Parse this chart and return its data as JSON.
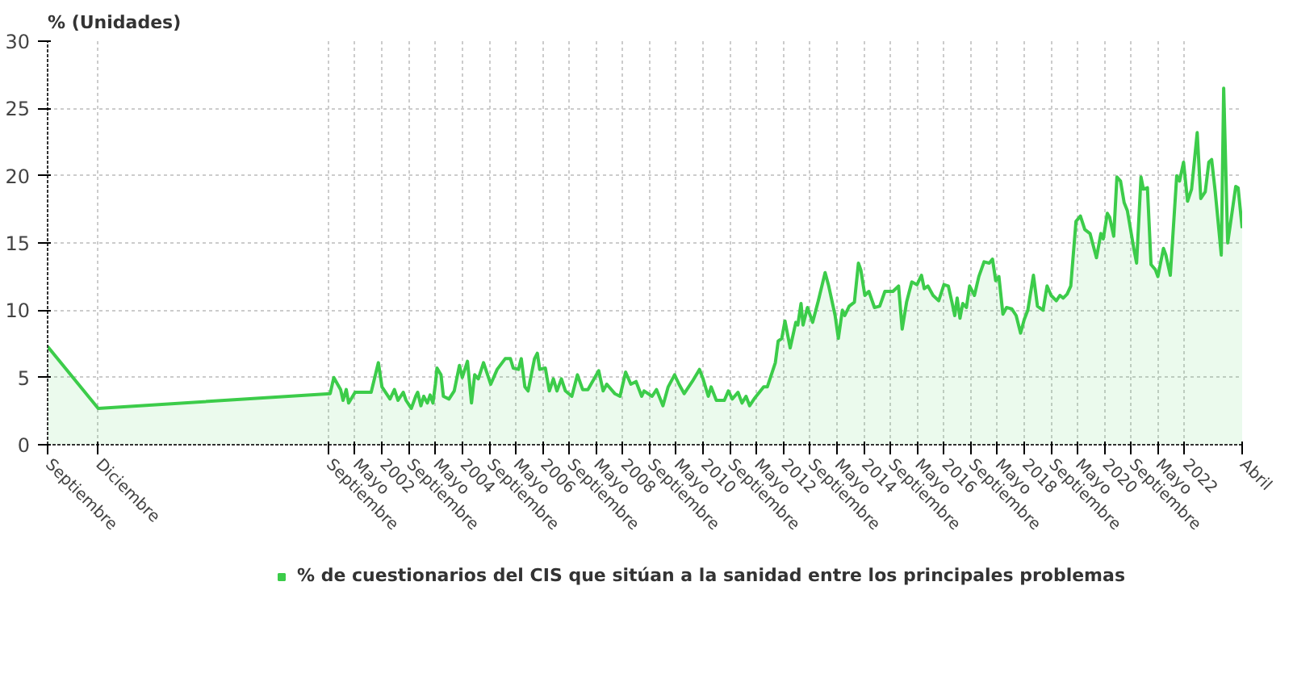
{
  "chart_data": {
    "type": "area",
    "ylabel": "% (Unidades)",
    "x": [
      1993.67,
      1994.93,
      2000.71,
      2000.8,
      2000.97,
      2001.03,
      2001.11,
      2001.17,
      2001.33,
      2001.53,
      2001.73,
      2001.91,
      2002.0,
      2002.2,
      2002.31,
      2002.4,
      2002.53,
      2002.6,
      2002.73,
      2002.84,
      2002.89,
      2002.97,
      2003.04,
      2003.13,
      2003.2,
      2003.27,
      2003.33,
      2003.37,
      2003.47,
      2003.53,
      2003.67,
      2003.8,
      2003.93,
      2004.0,
      2004.13,
      2004.23,
      2004.31,
      2004.4,
      2004.53,
      2004.71,
      2004.87,
      2005.07,
      2005.2,
      2005.27,
      2005.4,
      2005.47,
      2005.56,
      2005.64,
      2005.8,
      2005.87,
      2005.93,
      2006.07,
      2006.17,
      2006.27,
      2006.36,
      2006.47,
      2006.57,
      2006.73,
      2006.87,
      2007.0,
      2007.13,
      2007.4,
      2007.51,
      2007.6,
      2007.8,
      2007.93,
      2008.07,
      2008.2,
      2008.33,
      2008.47,
      2008.53,
      2008.73,
      2008.84,
      2009.0,
      2009.13,
      2009.29,
      2009.4,
      2009.53,
      2009.73,
      2009.91,
      2010.0,
      2010.13,
      2010.2,
      2010.33,
      2010.53,
      2010.63,
      2010.73,
      2010.87,
      2010.97,
      2011.07,
      2011.16,
      2011.27,
      2011.51,
      2011.6,
      2011.8,
      2011.87,
      2011.96,
      2012.04,
      2012.17,
      2012.31,
      2012.36,
      2012.44,
      2012.49,
      2012.6,
      2012.73,
      2012.87,
      2013.04,
      2013.13,
      2013.29,
      2013.37,
      2013.47,
      2013.53,
      2013.64,
      2013.77,
      2013.87,
      2013.93,
      2014.03,
      2014.13,
      2014.27,
      2014.4,
      2014.53,
      2014.73,
      2014.87,
      2014.96,
      2015.07,
      2015.2,
      2015.33,
      2015.44,
      2015.51,
      2015.6,
      2015.73,
      2015.87,
      2016.0,
      2016.11,
      2016.2,
      2016.27,
      2016.33,
      2016.4,
      2016.47,
      2016.56,
      2016.64,
      2016.76,
      2016.87,
      2017.0,
      2017.13,
      2017.21,
      2017.29,
      2017.37,
      2017.47,
      2017.56,
      2017.69,
      2017.8,
      2017.91,
      2018.0,
      2018.09,
      2018.23,
      2018.33,
      2018.47,
      2018.57,
      2018.67,
      2018.8,
      2018.89,
      2018.97,
      2019.07,
      2019.16,
      2019.29,
      2019.4,
      2019.51,
      2019.64,
      2019.8,
      2019.91,
      2019.97,
      2020.07,
      2020.13,
      2020.23,
      2020.31,
      2020.4,
      2020.49,
      2020.57,
      2020.73,
      2020.8,
      2020.91,
      2020.97,
      2021.07,
      2021.16,
      2021.27,
      2021.33,
      2021.47,
      2021.53,
      2021.64,
      2021.8,
      2021.87,
      2021.97,
      2022.07,
      2022.17,
      2022.31,
      2022.4,
      2022.51,
      2022.6,
      2022.67,
      2022.76,
      2022.91,
      2022.97,
      2023.07,
      2023.27,
      2023.33,
      2023.43
    ],
    "series": [
      {
        "name": "% de cuestionarios del CIS que sitúan a la sanidad entre los principales problemas",
        "color": "#3ccc4a",
        "values": [
          7.3,
          2.7,
          3.8,
          5.0,
          4.1,
          3.3,
          4.1,
          3.1,
          3.9,
          3.9,
          3.9,
          6.1,
          4.3,
          3.4,
          4.1,
          3.3,
          3.9,
          3.3,
          2.7,
          3.6,
          3.9,
          2.9,
          3.6,
          3.1,
          3.7,
          3.1,
          4.5,
          5.7,
          5.2,
          3.6,
          3.4,
          4.0,
          5.9,
          5.0,
          6.2,
          3.1,
          5.2,
          4.9,
          6.1,
          4.5,
          5.6,
          6.4,
          6.4,
          5.7,
          5.6,
          6.4,
          4.3,
          4.0,
          6.4,
          6.8,
          5.6,
          5.7,
          4.0,
          4.9,
          4.0,
          4.9,
          4.0,
          3.6,
          5.2,
          4.1,
          4.1,
          5.5,
          4.0,
          4.5,
          3.8,
          3.6,
          5.4,
          4.5,
          4.7,
          3.6,
          4.0,
          3.6,
          4.1,
          2.9,
          4.3,
          5.2,
          4.5,
          3.8,
          4.7,
          5.6,
          4.9,
          3.6,
          4.3,
          3.3,
          3.3,
          4.0,
          3.4,
          3.9,
          3.1,
          3.6,
          2.9,
          3.4,
          4.3,
          4.3,
          6.1,
          7.7,
          7.9,
          9.2,
          7.2,
          9.1,
          8.9,
          10.5,
          8.9,
          10.2,
          9.1,
          10.7,
          12.8,
          11.8,
          9.6,
          7.9,
          10.0,
          9.6,
          10.3,
          10.6,
          13.5,
          13.0,
          11.1,
          11.4,
          10.2,
          10.3,
          11.4,
          11.4,
          11.8,
          8.6,
          10.6,
          12.1,
          11.9,
          12.6,
          11.6,
          11.8,
          11.1,
          10.7,
          11.9,
          11.8,
          10.6,
          9.6,
          10.9,
          9.4,
          10.5,
          10.2,
          11.8,
          11.1,
          12.5,
          13.6,
          13.5,
          13.8,
          12.2,
          12.5,
          9.7,
          10.2,
          10.1,
          9.6,
          8.3,
          9.3,
          10.0,
          12.6,
          10.3,
          10.0,
          11.8,
          11.1,
          10.7,
          11.1,
          10.9,
          11.2,
          11.8,
          16.6,
          17.0,
          16.0,
          15.7,
          13.9,
          15.7,
          15.3,
          17.2,
          16.9,
          15.5,
          19.9,
          19.6,
          18.0,
          17.4,
          14.6,
          13.5,
          19.9,
          19.0,
          19.1,
          13.4,
          13.0,
          12.5,
          14.6,
          14.1,
          12.6,
          20.0,
          19.6,
          21.0,
          18.1,
          19.0,
          23.2,
          18.3,
          18.8,
          21.0,
          21.2,
          18.8,
          14.1,
          26.5,
          15.0,
          19.2,
          19.1,
          16.1
        ]
      }
    ],
    "xlim": [
      1993.67,
      2023.43
    ],
    "xticks": [
      {
        "value": 1993.67,
        "label": "Septiembre"
      },
      {
        "value": 1994.92,
        "label": "Diciembre"
      },
      {
        "value": 2000.67,
        "label": "Septiembre"
      },
      {
        "value": 2001.33,
        "label": "Mayo"
      },
      {
        "value": 2002,
        "label": "2002"
      },
      {
        "value": 2002.67,
        "label": "Septiembre"
      },
      {
        "value": 2003.33,
        "label": "Mayo"
      },
      {
        "value": 2004,
        "label": "2004"
      },
      {
        "value": 2004.67,
        "label": "Septiembre"
      },
      {
        "value": 2005.33,
        "label": "Mayo"
      },
      {
        "value": 2006,
        "label": "2006"
      },
      {
        "value": 2006.67,
        "label": "Septiembre"
      },
      {
        "value": 2007.33,
        "label": "Mayo"
      },
      {
        "value": 2008,
        "label": "2008"
      },
      {
        "value": 2008.67,
        "label": "Septiembre"
      },
      {
        "value": 2009.33,
        "label": "Mayo"
      },
      {
        "value": 2010,
        "label": "2010"
      },
      {
        "value": 2010.67,
        "label": "Septiembre"
      },
      {
        "value": 2011.33,
        "label": "Mayo"
      },
      {
        "value": 2012,
        "label": "2012"
      },
      {
        "value": 2012.67,
        "label": "Septiembre"
      },
      {
        "value": 2013.33,
        "label": "Mayo"
      },
      {
        "value": 2014,
        "label": "2014"
      },
      {
        "value": 2014.67,
        "label": "Septiembre"
      },
      {
        "value": 2015.33,
        "label": "Mayo"
      },
      {
        "value": 2016,
        "label": "2016"
      },
      {
        "value": 2016.67,
        "label": "Septiembre"
      },
      {
        "value": 2017.33,
        "label": "Mayo"
      },
      {
        "value": 2018,
        "label": "2018"
      },
      {
        "value": 2018.67,
        "label": "Septiembre"
      },
      {
        "value": 2019.33,
        "label": "Mayo"
      },
      {
        "value": 2020,
        "label": "2020"
      },
      {
        "value": 2020.67,
        "label": "Septiembre"
      },
      {
        "value": 2021.33,
        "label": "Mayo"
      },
      {
        "value": 2022,
        "label": "2022"
      },
      {
        "value": 2023.43,
        "label": "Abril"
      }
    ],
    "ylim": [
      0,
      30
    ],
    "yticks": [
      0,
      5,
      10,
      15,
      20,
      25,
      30
    ],
    "grid": true,
    "legend": "bottom"
  }
}
